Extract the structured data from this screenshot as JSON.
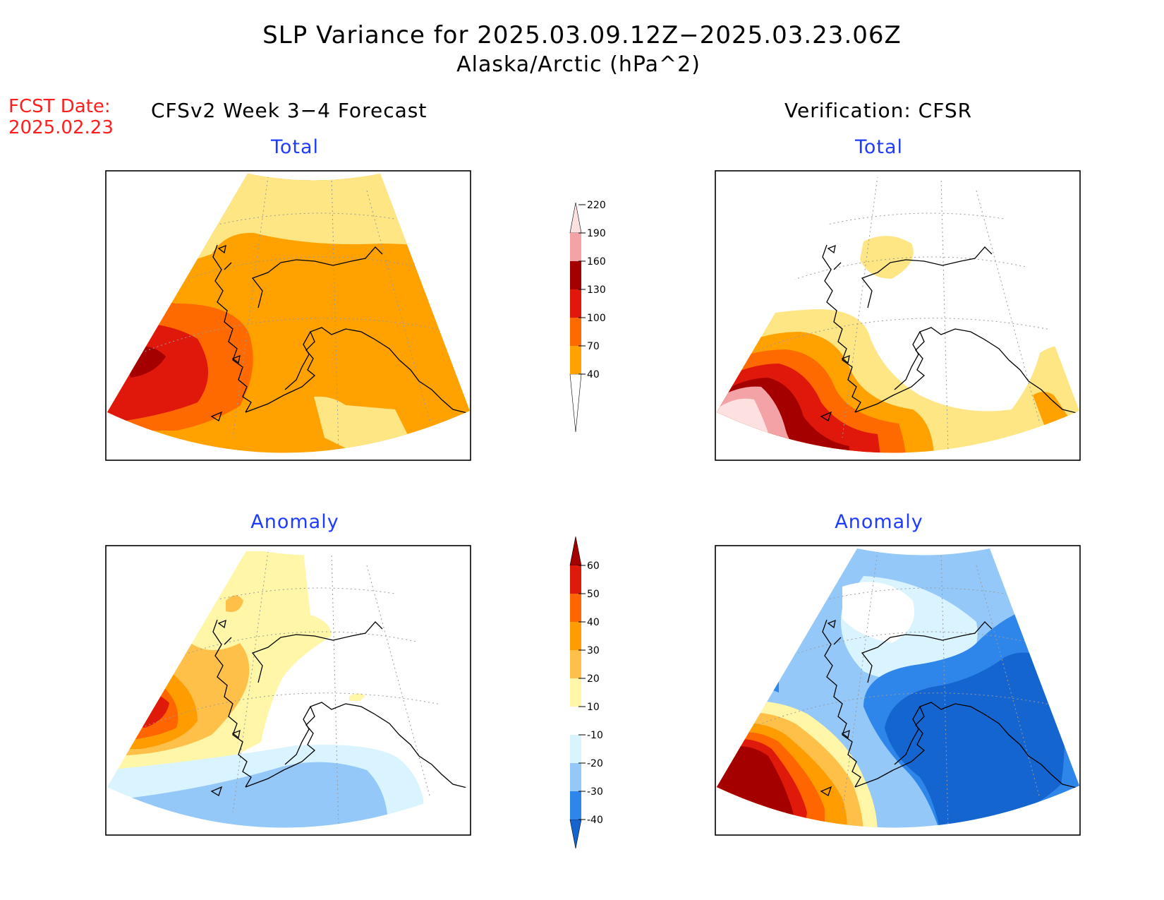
{
  "title": {
    "line1": "SLP Variance for 2025.03.09.12Z−2025.03.23.06Z",
    "line2": "Alaska/Arctic (hPa^2)"
  },
  "forecast_date": {
    "label": "FCST Date:",
    "value": "2025.02.23"
  },
  "columns": {
    "left": "CFSv2 Week 3−4 Forecast",
    "right": "Verification: CFSR"
  },
  "panels": {
    "forecast_total": "Total",
    "verification_total": "Total",
    "forecast_anomaly": "Anomaly",
    "verification_anomaly": "Anomaly"
  },
  "colorbars": {
    "total": {
      "levels": [
        "40",
        "70",
        "100",
        "130",
        "160",
        "190",
        "220"
      ],
      "colors": [
        "#fde683",
        "#ffa200",
        "#ff6a00",
        "#e0180c",
        "#a50000",
        "#f3a2a5",
        "#fde1e1"
      ]
    },
    "anomaly": {
      "levels": [
        "-40",
        "-30",
        "-20",
        "-10",
        "10",
        "20",
        "30",
        "40",
        "50",
        "60"
      ],
      "colors": [
        "#1565d0",
        "#2f86ea",
        "#93c8f8",
        "#d9f4ff",
        "#ffffff",
        "#fff6a8",
        "#ffc04a",
        "#ff9c00",
        "#ff6600",
        "#e01a0a",
        "#a50000"
      ]
    }
  }
}
